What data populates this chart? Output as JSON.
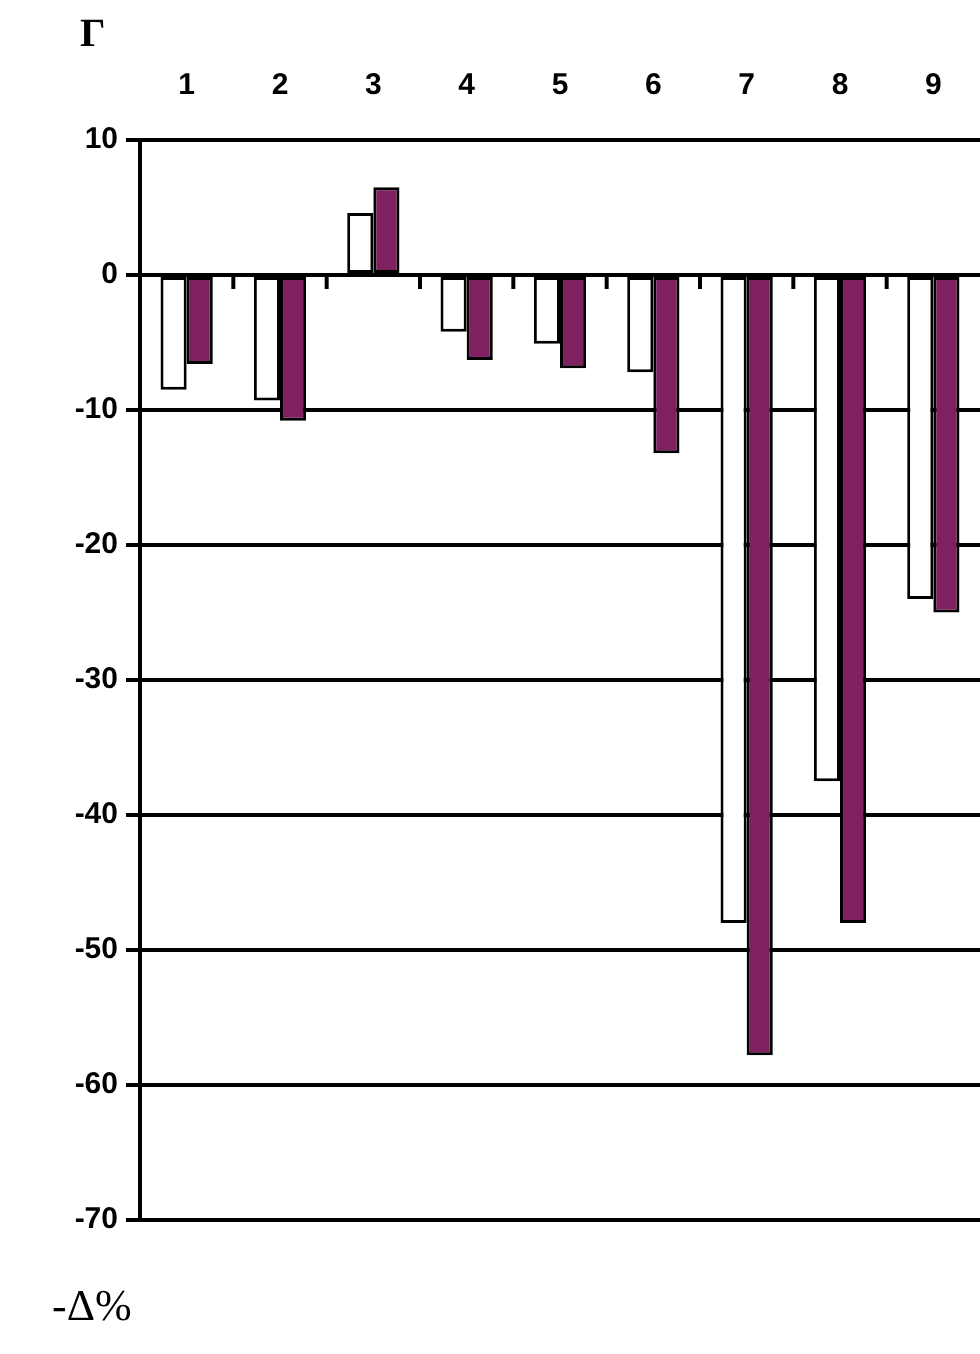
{
  "chart_data": {
    "type": "bar",
    "xlabel": "Г",
    "ylabel": "-Δ%",
    "categories": [
      "1",
      "2",
      "3",
      "4",
      "5",
      "6",
      "7",
      "8",
      "9"
    ],
    "series": [
      {
        "color": "#ffffff",
        "values": [
          -8.5,
          -9.3,
          4.6,
          -4.2,
          -5.1,
          -7.2,
          -48,
          -37.5,
          -24
        ]
      },
      {
        "color": "#7f2160",
        "values": [
          -6.6,
          -10.8,
          6.5,
          -6.3,
          -6.9,
          -13.2,
          -57.8,
          -48,
          -25
        ]
      }
    ],
    "ylim": [
      -70,
      10
    ],
    "yticks": [
      -70,
      -60,
      -50,
      -40,
      -30,
      -20,
      -10,
      0,
      10
    ],
    "grid": "y",
    "legend": false
  }
}
